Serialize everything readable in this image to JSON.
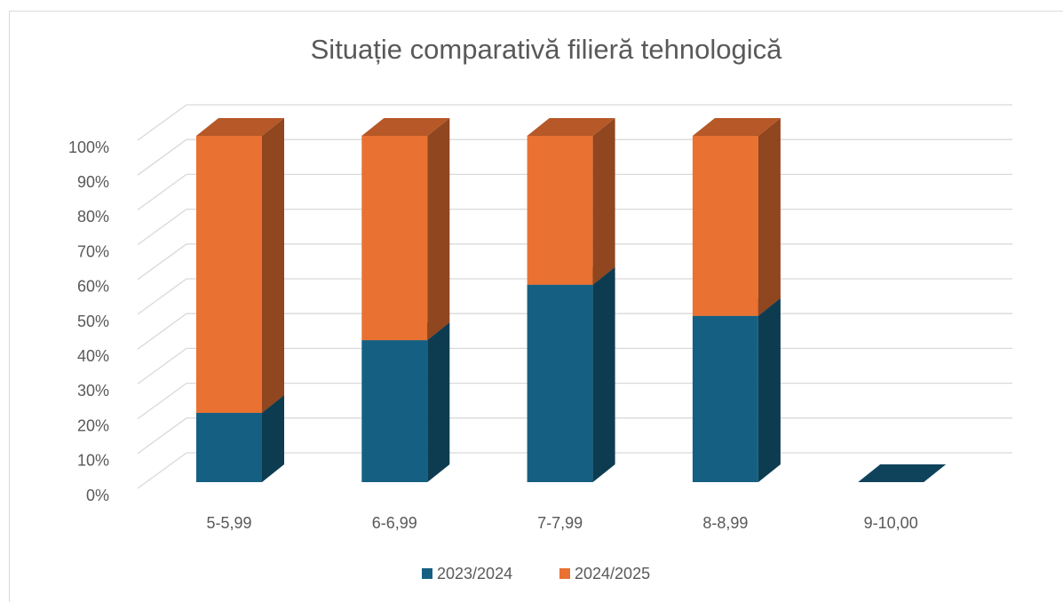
{
  "chart_data": {
    "type": "bar3d_stacked_percent",
    "title": "Situație comparativă filieră tehnologică",
    "categories": [
      "5-5,99",
      "6-6,99",
      "7-7,99",
      "8-8,99",
      "9-10,00"
    ],
    "series": [
      {
        "name": "2023/2024",
        "color": "#156082",
        "values": [
          20,
          41,
          57,
          48,
          0
        ]
      },
      {
        "name": "2024/2025",
        "color": "#e97132",
        "values": [
          80,
          59,
          43,
          52,
          0
        ]
      }
    ],
    "ylim": [
      0,
      100
    ],
    "yticks": [
      {
        "value": 0,
        "label": "0%"
      },
      {
        "value": 10,
        "label": "10%"
      },
      {
        "value": 20,
        "label": "20%"
      },
      {
        "value": 30,
        "label": "30%"
      },
      {
        "value": 40,
        "label": "40%"
      },
      {
        "value": 50,
        "label": "50%"
      },
      {
        "value": 60,
        "label": "60%"
      },
      {
        "value": 70,
        "label": "70%"
      },
      {
        "value": 80,
        "label": "80%"
      },
      {
        "value": 90,
        "label": "90%"
      },
      {
        "value": 100,
        "label": "100%"
      }
    ],
    "grid": true,
    "legend": "bottom"
  }
}
